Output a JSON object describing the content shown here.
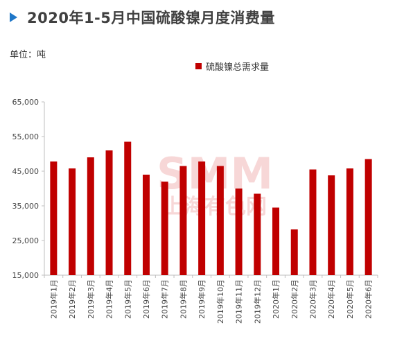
{
  "header": {
    "title": "2020年1-5月中国硫酸镍月度消费量",
    "unit_label": "单位：吨"
  },
  "watermark": {
    "logo": "SMM",
    "text": "上海有色网"
  },
  "chart_data": {
    "type": "bar",
    "title": "2020年1-5月中国硫酸镍月度消费量",
    "xlabel": "",
    "ylabel": "",
    "ylim": [
      15000,
      65000
    ],
    "yticks": [
      15000,
      25000,
      35000,
      45000,
      55000,
      65000
    ],
    "ytick_labels": [
      "15,000",
      "25,000",
      "35,000",
      "45,000",
      "55,000",
      "65,000"
    ],
    "grid": false,
    "legend_position": "top-center",
    "categories": [
      "2019年1月",
      "2019年2月",
      "2019年3月",
      "2019年4月",
      "2019年5月",
      "2019年6月",
      "2019年7月",
      "2019年8月",
      "2019年9月",
      "2019年10月",
      "2019年11月",
      "2019年12月",
      "2020年1月",
      "2020年2月",
      "2020年3月",
      "2020年4月",
      "2020年5月",
      "2020年6月"
    ],
    "series": [
      {
        "name": "硫酸镍总需求量",
        "color": "#c00000",
        "values": [
          47800,
          45800,
          49000,
          51000,
          53500,
          44000,
          42000,
          46500,
          47800,
          46500,
          40000,
          38500,
          34500,
          28200,
          45500,
          43800,
          45800,
          48500
        ]
      }
    ]
  }
}
